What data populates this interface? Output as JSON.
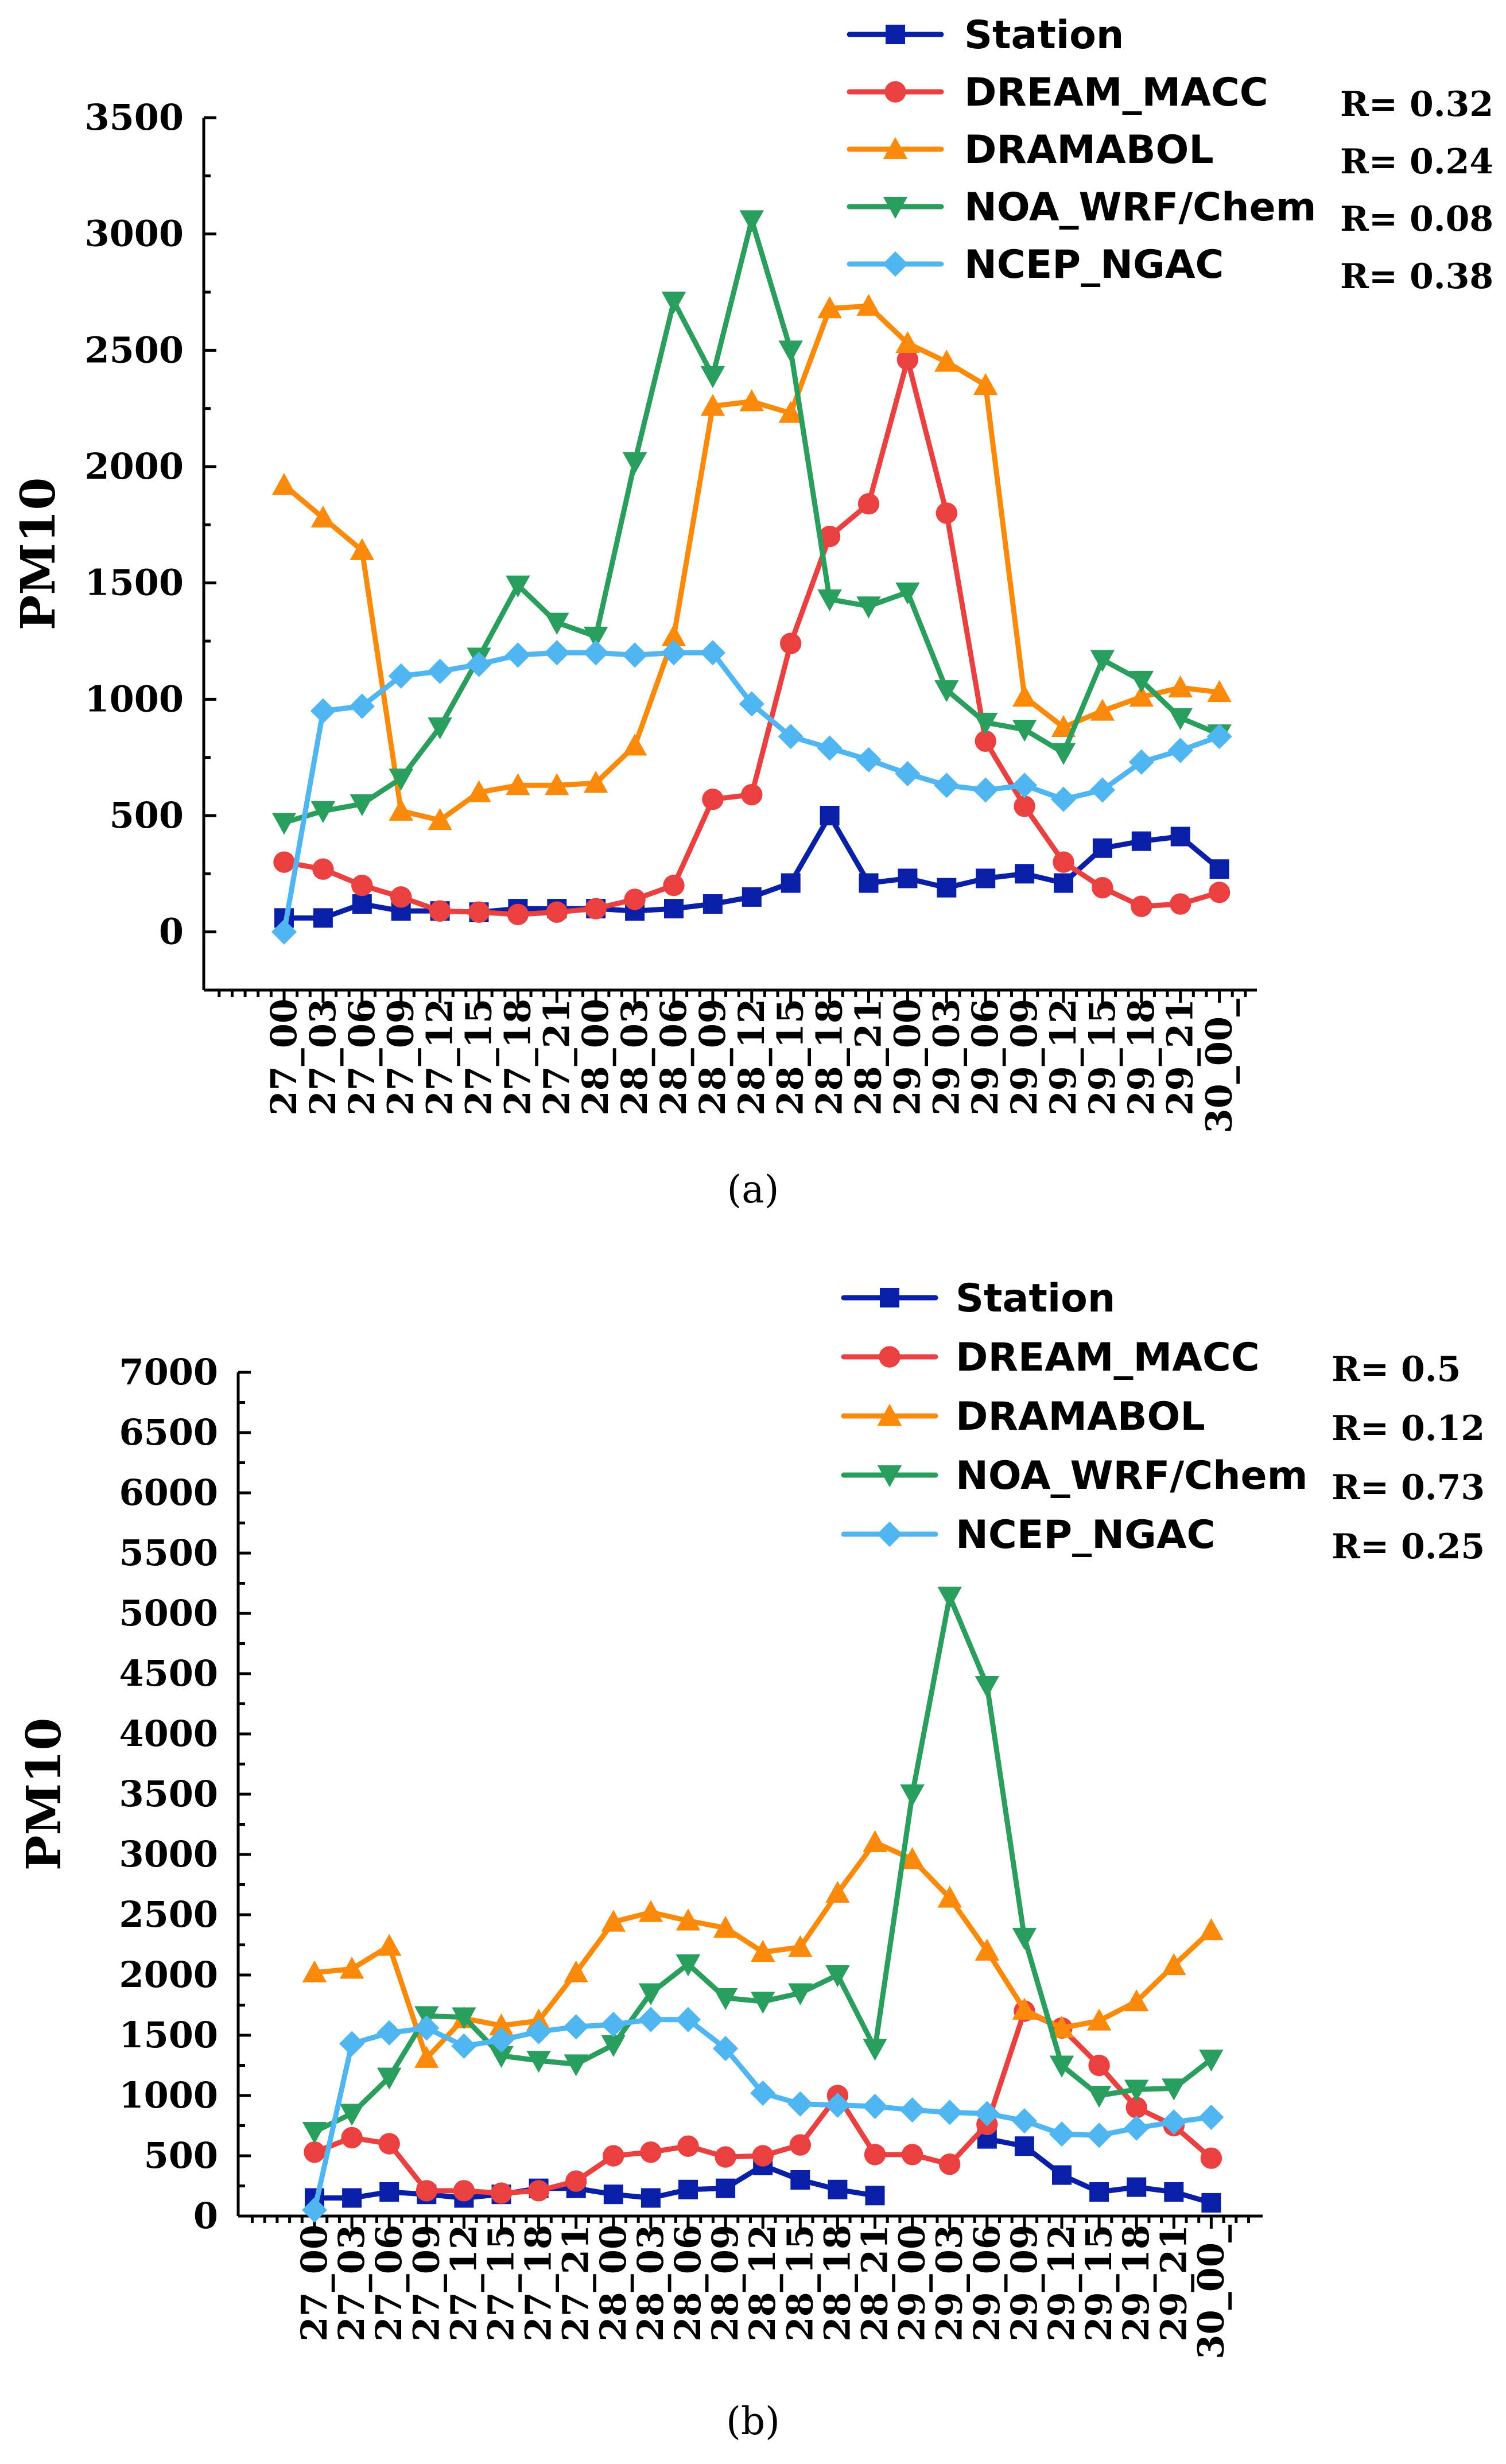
{
  "chart_data": [
    {
      "id": "a",
      "type": "line",
      "caption": "(a)",
      "ylabel": "PM10",
      "xlabel": "",
      "ylim": [
        -250,
        3500
      ],
      "yticks": [
        0,
        500,
        1000,
        1500,
        2000,
        2500,
        3000,
        3500
      ],
      "categories": [
        "27_00",
        "27_03",
        "27_06",
        "27_09",
        "27_12",
        "27_15",
        "27_18",
        "27_21",
        "28_00",
        "28_03",
        "28_06",
        "28_09",
        "28_12",
        "28_15",
        "28_18",
        "28_21",
        "29_00",
        "29_03",
        "29_06",
        "29_09",
        "29_12",
        "29_15",
        "29_18",
        "29_21",
        "30_00_"
      ],
      "series": [
        {
          "name": "Station",
          "color": "#0a1fa8",
          "marker": "square",
          "r_label": "",
          "values": [
            60,
            60,
            120,
            90,
            90,
            85,
            100,
            100,
            100,
            90,
            100,
            120,
            150,
            210,
            500,
            210,
            230,
            190,
            230,
            250,
            210,
            360,
            390,
            410,
            270
          ]
        },
        {
          "name": "DREAM_MACC",
          "color": "#eb4040",
          "marker": "circle",
          "r_label": "R= 0.32",
          "values": [
            300,
            270,
            200,
            150,
            90,
            85,
            75,
            85,
            100,
            140,
            200,
            570,
            590,
            1240,
            1700,
            1840,
            2460,
            1800,
            820,
            540,
            300,
            190,
            110,
            120,
            170
          ]
        },
        {
          "name": "DRAMABOL",
          "color": "#fb8a0a",
          "marker": "triangle-up",
          "r_label": "R= 0.24",
          "values": [
            1920,
            1780,
            1640,
            520,
            480,
            600,
            630,
            630,
            640,
            800,
            1270,
            2260,
            2280,
            2230,
            2680,
            2690,
            2530,
            2450,
            2350,
            1010,
            880,
            950,
            1010,
            1050,
            1030
          ]
        },
        {
          "name": "NOA_WRF/Chem",
          "color": "#2a9e5c",
          "marker": "triangle-down",
          "r_label": "R= 0.08",
          "values": [
            470,
            520,
            550,
            660,
            880,
            1180,
            1490,
            1330,
            1270,
            2020,
            2710,
            2390,
            3060,
            2500,
            1430,
            1400,
            1460,
            1040,
            900,
            870,
            770,
            1170,
            1080,
            920,
            850
          ]
        },
        {
          "name": "NCEP_NGAC",
          "color": "#4fb6f2",
          "marker": "diamond",
          "r_label": "R= 0.38",
          "values": [
            0,
            950,
            970,
            1100,
            1120,
            1150,
            1190,
            1200,
            1200,
            1190,
            1200,
            1200,
            980,
            840,
            790,
            740,
            680,
            630,
            610,
            630,
            570,
            610,
            730,
            780,
            840
          ]
        }
      ]
    },
    {
      "id": "b",
      "type": "line",
      "caption": "(b)",
      "ylabel": "PM10",
      "xlabel": "",
      "ylim": [
        0,
        7000
      ],
      "yticks": [
        0,
        500,
        1000,
        1500,
        2000,
        2500,
        3000,
        3500,
        4000,
        4500,
        5000,
        5500,
        6000,
        6500,
        7000
      ],
      "categories": [
        "27_00",
        "27_03",
        "27_06",
        "27_09",
        "27_12",
        "27_15",
        "27_18",
        "27_21",
        "28_00",
        "28_03",
        "28_06",
        "28_09",
        "28_12",
        "28_15",
        "28_18",
        "28_21",
        "29_00",
        "29_03",
        "29_06",
        "29_09",
        "29_12",
        "29_15",
        "29_18",
        "29_21",
        "30_00_"
      ],
      "series": [
        {
          "name": "Station",
          "color": "#0a1fa8",
          "marker": "square",
          "r_label": "",
          "values": [
            150,
            150,
            200,
            180,
            150,
            180,
            230,
            230,
            180,
            150,
            220,
            230,
            420,
            300,
            220,
            170,
            null,
            null,
            640,
            580,
            340,
            200,
            240,
            200,
            110
          ]
        },
        {
          "name": "DREAM_MACC",
          "color": "#eb4040",
          "marker": "circle",
          "r_label": "R= 0.5",
          "values": [
            530,
            650,
            600,
            210,
            210,
            190,
            210,
            290,
            500,
            530,
            580,
            490,
            500,
            590,
            1000,
            510,
            510,
            430,
            760,
            1700,
            1560,
            1250,
            900,
            750,
            480
          ]
        },
        {
          "name": "DRAMABOL",
          "color": "#fb8a0a",
          "marker": "triangle-up",
          "r_label": "R= 0.12",
          "values": [
            2020,
            2050,
            2240,
            1310,
            1640,
            1580,
            1620,
            2020,
            2440,
            2520,
            2450,
            2390,
            2190,
            2230,
            2680,
            3100,
            2960,
            2640,
            2200,
            1710,
            1560,
            1620,
            1780,
            2080,
            2370
          ]
        },
        {
          "name": "NOA_WRF/Chem",
          "color": "#2a9e5c",
          "marker": "triangle-down",
          "r_label": "R= 0.73",
          "values": [
            700,
            850,
            1150,
            1660,
            1650,
            1330,
            1290,
            1260,
            1420,
            1850,
            2090,
            1810,
            1780,
            1850,
            2000,
            1390,
            3500,
            5140,
            4400,
            2310,
            1250,
            1000,
            1050,
            1060,
            1300
          ]
        },
        {
          "name": "NCEP_NGAC",
          "color": "#4fb6f2",
          "marker": "diamond",
          "r_label": "R= 0.25",
          "values": [
            50,
            1430,
            1520,
            1560,
            1410,
            1460,
            1530,
            1570,
            1590,
            1630,
            1630,
            1390,
            1020,
            930,
            920,
            910,
            880,
            860,
            850,
            790,
            680,
            670,
            730,
            780,
            820
          ]
        }
      ]
    }
  ]
}
